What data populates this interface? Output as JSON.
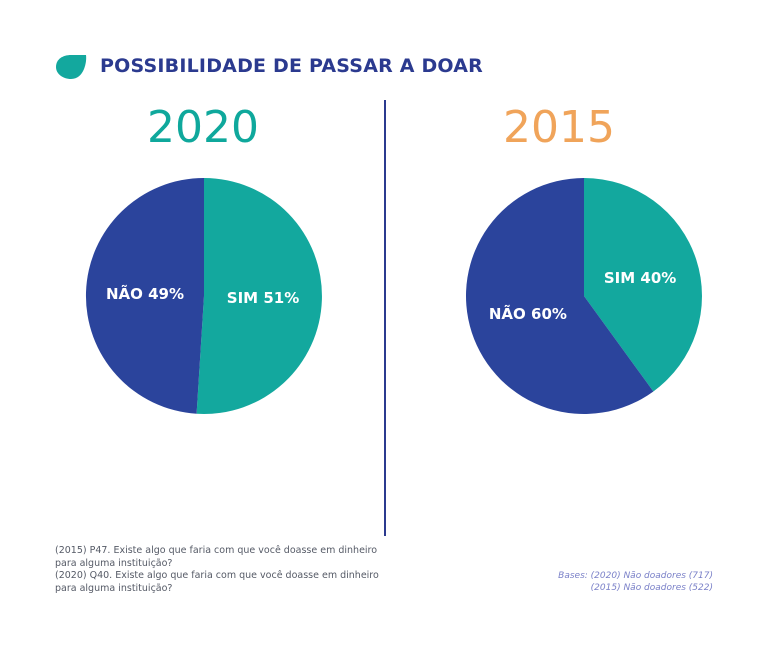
{
  "title": "POSSIBILIDADE DE PASSAR A DOAR",
  "colors": {
    "sim": "#13a89e",
    "nao": "#2b449c",
    "accent_2020": "#0fa89c",
    "accent_2015": "#f0a45a",
    "title": "#2b3a8f"
  },
  "chart_data": [
    {
      "type": "pie",
      "title": "2020",
      "slices": [
        {
          "label": "SIM 51%",
          "category": "SIM",
          "value": 51
        },
        {
          "label": "NÃO 49%",
          "category": "NÃO",
          "value": 49
        }
      ]
    },
    {
      "type": "pie",
      "title": "2015",
      "slices": [
        {
          "label": "SIM 40%",
          "category": "SIM",
          "value": 40
        },
        {
          "label": "NÃO 60%",
          "category": "NÃO",
          "value": 60
        }
      ]
    }
  ],
  "footnote": {
    "line1": "(2015) P47. Existe algo que faria com que você doasse em dinheiro para alguma instituição?",
    "line2": "(2020) Q40. Existe algo que faria com que você doasse em dinheiro para alguma instituição?"
  },
  "bases": {
    "line1": "Bases: (2020) Não doadores (717)",
    "line2": "(2015) Não doadores (522)"
  }
}
